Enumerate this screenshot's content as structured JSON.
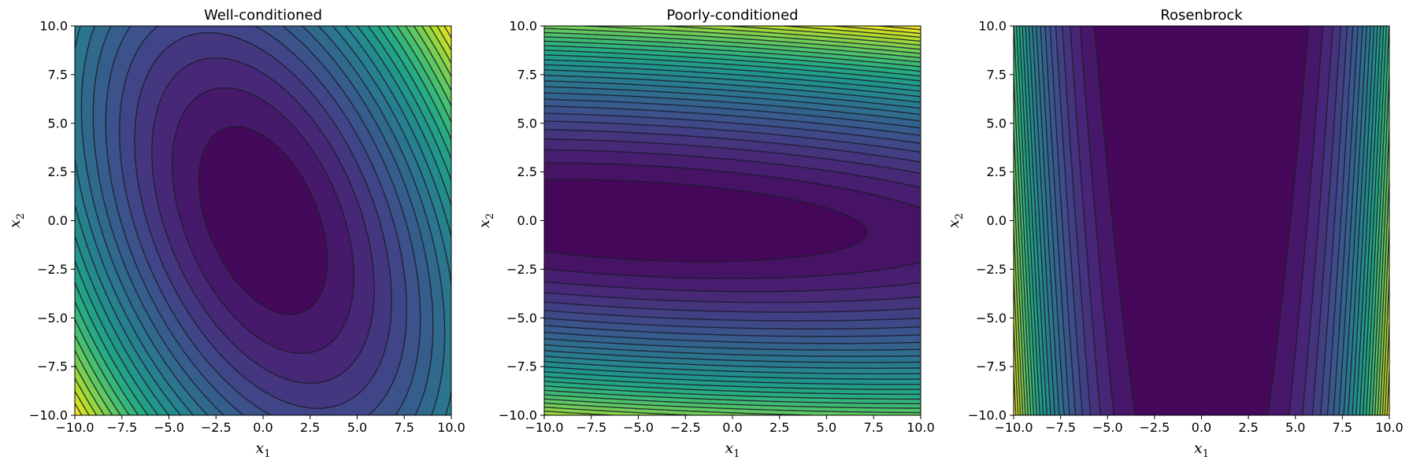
{
  "chart_data": [
    {
      "type": "contour",
      "title": "Well-conditioned",
      "xlabel": "x",
      "xlabel_sub": "1",
      "ylabel": "x",
      "ylabel_sub": "2",
      "xlim": [
        -10,
        10
      ],
      "ylim": [
        -10,
        10
      ],
      "xticks": [
        -10,
        -7.5,
        -5,
        -2.5,
        0,
        2.5,
        5,
        7.5,
        10
      ],
      "yticks": [
        -10,
        -7.5,
        -5,
        -2.5,
        0,
        2.5,
        5,
        7.5,
        10
      ],
      "colormap": "viridis",
      "function": {
        "kind": "quadratic",
        "a": 1.0,
        "b": 0.3,
        "c": 0.5
      },
      "level_count": 22,
      "filled": true,
      "line_color": "#1b1b2a"
    },
    {
      "type": "contour",
      "title": "Poorly-conditioned",
      "xlabel": "x",
      "xlabel_sub": "1",
      "ylabel": "x",
      "ylabel_sub": "2",
      "xlim": [
        -10,
        10
      ],
      "ylim": [
        -10,
        10
      ],
      "xticks": [
        -10,
        -7.5,
        -5,
        -2.5,
        0,
        2.5,
        5,
        7.5,
        10
      ],
      "yticks": [
        -10,
        -7.5,
        -5,
        -2.5,
        0,
        2.5,
        5,
        7.5,
        10
      ],
      "colormap": "viridis",
      "function": {
        "kind": "quadratic",
        "a": 0.03,
        "b": 0.05,
        "c": 1.0,
        "min": [
          -5,
          0
        ]
      },
      "level_count": 30,
      "filled": true,
      "line_color": "#1b1b2a"
    },
    {
      "type": "contour",
      "title": "Rosenbrock",
      "xlabel": "x",
      "xlabel_sub": "1",
      "ylabel": "x",
      "ylabel_sub": "2",
      "xlim": [
        -10,
        10
      ],
      "ylim": [
        -10,
        10
      ],
      "xticks": [
        -10,
        -7.5,
        -5,
        -2.5,
        0,
        2.5,
        5,
        7.5,
        10
      ],
      "yticks": [
        -10,
        -7.5,
        -5,
        -2.5,
        0,
        2.5,
        5,
        7.5,
        10
      ],
      "colormap": "viridis",
      "function": {
        "kind": "rosenbrock",
        "a": 1,
        "b": 100
      },
      "level_count": 24,
      "filled": true,
      "line_color": "#1b1b2a"
    }
  ]
}
